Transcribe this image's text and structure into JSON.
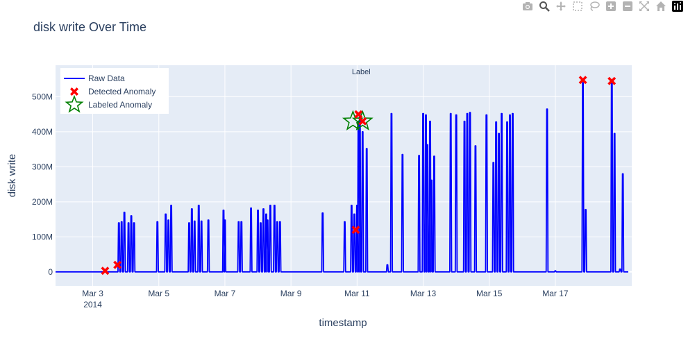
{
  "modebar": {
    "icons": [
      "camera-icon",
      "zoom-icon",
      "pan-icon",
      "box-select-icon",
      "lasso-select-icon",
      "zoom-in-icon",
      "zoom-out-icon",
      "autoscale-icon",
      "home-icon",
      "plotly-logo-icon"
    ],
    "color": "#b3b3b3",
    "active_color": "#555555"
  },
  "chart_data": {
    "type": "line",
    "title": "disk write Over Time",
    "xlabel": "timestamp",
    "ylabel": "disk write",
    "x_range": [
      "2014-03-01T21:00",
      "2014-03-19T07:30"
    ],
    "ylim": [
      -40000000,
      590000000
    ],
    "x_ticks": [
      {
        "value": "2014-03-03",
        "label": "Mar 3",
        "sublabel": "2014"
      },
      {
        "value": "2014-03-05",
        "label": "Mar 5"
      },
      {
        "value": "2014-03-07",
        "label": "Mar 7"
      },
      {
        "value": "2014-03-09",
        "label": "Mar 9"
      },
      {
        "value": "2014-03-11",
        "label": "Mar 11"
      },
      {
        "value": "2014-03-13",
        "label": "Mar 13"
      },
      {
        "value": "2014-03-15",
        "label": "Mar 15"
      },
      {
        "value": "2014-03-17",
        "label": "Mar 17"
      }
    ],
    "y_ticks": [
      {
        "value": 0,
        "label": "0"
      },
      {
        "value": 100000000,
        "label": "100M"
      },
      {
        "value": 200000000,
        "label": "200M"
      },
      {
        "value": 300000000,
        "label": "300M"
      },
      {
        "value": 400000000,
        "label": "400M"
      },
      {
        "value": 500000000,
        "label": "500M"
      }
    ],
    "grid": true,
    "legend_position": "top-left",
    "annotation": {
      "text": "Label",
      "position": "top-center"
    },
    "colors": {
      "plot_bg": "#e5ecf6",
      "grid": "#ffffff",
      "raw": "#0000ff",
      "detected": "#ff0000",
      "labeled": "#008000"
    },
    "series": [
      {
        "name": "Raw Data",
        "kind": "line",
        "spikes": [
          [
            "2014-03-03T19:00",
            140000000
          ],
          [
            "2014-03-03T21:00",
            143000000
          ],
          [
            "2014-03-03T23:00",
            170000000
          ],
          [
            "2014-03-04T02:00",
            140000000
          ],
          [
            "2014-03-04T04:00",
            160000000
          ],
          [
            "2014-03-04T06:00",
            140000000
          ],
          [
            "2014-03-04T23:00",
            143000000
          ],
          [
            "2014-03-05T05:00",
            165000000
          ],
          [
            "2014-03-05T07:00",
            148000000
          ],
          [
            "2014-03-05T09:00",
            190000000
          ],
          [
            "2014-03-05T22:00",
            140000000
          ],
          [
            "2014-03-06T00:00",
            180000000
          ],
          [
            "2014-03-06T02:00",
            145000000
          ],
          [
            "2014-03-06T05:00",
            190000000
          ],
          [
            "2014-03-06T07:00",
            145000000
          ],
          [
            "2014-03-06T12:00",
            148000000
          ],
          [
            "2014-03-06T23:00",
            176000000
          ],
          [
            "2014-03-07T00:00",
            148000000
          ],
          [
            "2014-03-07T10:00",
            143000000
          ],
          [
            "2014-03-07T12:00",
            143000000
          ],
          [
            "2014-03-07T19:00",
            182000000
          ],
          [
            "2014-03-08T00:00",
            176000000
          ],
          [
            "2014-03-08T02:00",
            140000000
          ],
          [
            "2014-03-08T04:00",
            180000000
          ],
          [
            "2014-03-08T06:00",
            165000000
          ],
          [
            "2014-03-08T07:00",
            148000000
          ],
          [
            "2014-03-08T09:00",
            190000000
          ],
          [
            "2014-03-08T12:00",
            190000000
          ],
          [
            "2014-03-08T14:00",
            143000000
          ],
          [
            "2014-03-08T16:00",
            143000000
          ],
          [
            "2014-03-09T23:00",
            168000000
          ],
          [
            "2014-03-10T15:00",
            143000000
          ],
          [
            "2014-03-10T20:00",
            190000000
          ],
          [
            "2014-03-10T22:00",
            165000000
          ],
          [
            "2014-03-11T00:00",
            190000000
          ],
          [
            "2014-03-11T01:00",
            430000000
          ],
          [
            "2014-03-11T02:00",
            450000000
          ],
          [
            "2014-03-11T04:00",
            400000000
          ],
          [
            "2014-03-11T07:00",
            352000000
          ],
          [
            "2014-03-11T22:00",
            20000000
          ],
          [
            "2014-03-12T01:00",
            452000000
          ],
          [
            "2014-03-12T09:00",
            335000000
          ],
          [
            "2014-03-12T21:00",
            332000000
          ],
          [
            "2014-03-13T00:00",
            452000000
          ],
          [
            "2014-03-13T02:00",
            448000000
          ],
          [
            "2014-03-13T03:00",
            363000000
          ],
          [
            "2014-03-13T05:00",
            430000000
          ],
          [
            "2014-03-13T06:00",
            262000000
          ],
          [
            "2014-03-13T08:00",
            330000000
          ],
          [
            "2014-03-13T20:00",
            452000000
          ],
          [
            "2014-03-14T00:00",
            448000000
          ],
          [
            "2014-03-14T06:00",
            430000000
          ],
          [
            "2014-03-14T08:00",
            452000000
          ],
          [
            "2014-03-14T10:00",
            455000000
          ],
          [
            "2014-03-14T14:00",
            360000000
          ],
          [
            "2014-03-14T22:00",
            448000000
          ],
          [
            "2014-03-15T03:00",
            312000000
          ],
          [
            "2014-03-15T05:00",
            428000000
          ],
          [
            "2014-03-15T07:00",
            395000000
          ],
          [
            "2014-03-15T09:00",
            452000000
          ],
          [
            "2014-03-15T13:00",
            428000000
          ],
          [
            "2014-03-15T15:00",
            448000000
          ],
          [
            "2014-03-15T17:00",
            452000000
          ],
          [
            "2014-03-16T18:00",
            465000000
          ],
          [
            "2014-03-17T00:00",
            3000000
          ],
          [
            "2014-03-17T20:00",
            540000000
          ],
          [
            "2014-03-17T22:00",
            178000000
          ],
          [
            "2014-03-18T17:00",
            540000000
          ],
          [
            "2014-03-18T19:00",
            395000000
          ],
          [
            "2014-03-18T23:00",
            8000000
          ],
          [
            "2014-03-19T01:00",
            280000000
          ]
        ]
      },
      {
        "name": "Detected Anomaly",
        "kind": "markers",
        "points": [
          [
            "2014-03-03T09:00",
            3000000
          ],
          [
            "2014-03-03T18:00",
            20000000
          ],
          [
            "2014-03-10T23:00",
            120000000
          ],
          [
            "2014-03-11T01:00",
            450000000
          ],
          [
            "2014-03-11T04:00",
            430000000
          ],
          [
            "2014-03-17T20:00",
            548000000
          ],
          [
            "2014-03-18T17:00",
            545000000
          ]
        ]
      },
      {
        "name": "Labeled Anomaly",
        "kind": "markers",
        "points": [
          [
            "2014-03-10T21:00",
            430000000
          ],
          [
            "2014-03-11T04:00",
            430000000
          ]
        ]
      }
    ]
  }
}
